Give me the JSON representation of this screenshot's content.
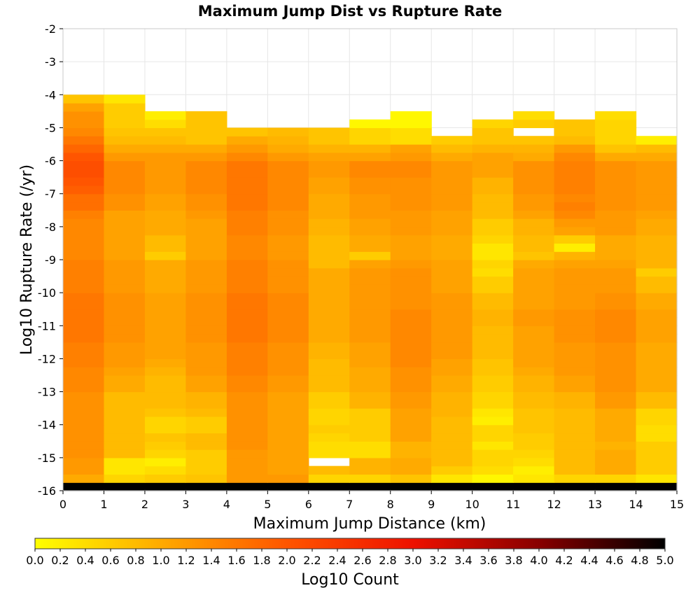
{
  "chart_data": {
    "type": "heatmap",
    "title": "Maximum Jump Dist vs Rupture Rate",
    "xlabel": "Maximum Jump Distance (km)",
    "ylabel": "Log10 Rupture Rate (/yr)",
    "xlim": [
      0,
      15
    ],
    "ylim": [
      -16,
      -2
    ],
    "x_ticks": [
      0,
      1,
      2,
      3,
      4,
      5,
      6,
      7,
      8,
      9,
      10,
      11,
      12,
      13,
      14,
      15
    ],
    "y_ticks": [
      -2,
      -3,
      -4,
      -5,
      -6,
      -7,
      -8,
      -9,
      -10,
      -11,
      -12,
      -13,
      -14,
      -15,
      -16
    ],
    "x_bin_width": 1,
    "y_bin_start": -16,
    "y_bin_height": 0.25,
    "grid": true,
    "colorbar": {
      "label": "Log10 Count",
      "min": 0,
      "max": 5,
      "ticks": [
        "0.0",
        "0.2",
        "0.4",
        "0.6",
        "0.8",
        "1.0",
        "1.2",
        "1.4",
        "1.6",
        "1.8",
        "2.0",
        "2.2",
        "2.4",
        "2.6",
        "2.8",
        "3.0",
        "3.2",
        "3.4",
        "3.6",
        "3.8",
        "4.0",
        "4.2",
        "4.4",
        "4.6",
        "4.8",
        "5.0"
      ],
      "colors": [
        "#ffff00",
        "#ffaa00",
        "#ff5500",
        "#ee1100",
        "#880000",
        "#000000"
      ]
    },
    "values": [
      [
        5.0,
        5.0,
        5.0,
        5.0,
        5.0,
        5.0,
        5.0,
        5.0,
        5.0,
        5.0,
        5.0,
        5.0,
        5.0,
        5.0,
        5.0
      ],
      [
        1.0,
        0.5,
        0.6,
        0.7,
        1.2,
        1.2,
        0.5,
        0.5,
        0.7,
        0.3,
        0.1,
        0.3,
        0.5,
        0.5,
        0.3
      ],
      [
        1.2,
        0.3,
        0.4,
        0.6,
        1.2,
        1.1,
        0.8,
        0.9,
        1.0,
        0.6,
        0.4,
        0.2,
        0.8,
        1.0,
        0.6
      ],
      [
        1.2,
        0.3,
        0.2,
        0.6,
        1.2,
        1.1,
        -1.0,
        0.9,
        1.0,
        0.8,
        0.5,
        0.4,
        0.8,
        1.0,
        0.6
      ],
      [
        1.3,
        0.8,
        0.5,
        0.6,
        1.2,
        1.1,
        0.4,
        0.4,
        0.9,
        0.8,
        0.5,
        0.5,
        0.8,
        1.0,
        0.6
      ],
      [
        1.3,
        0.8,
        0.6,
        0.8,
        1.3,
        1.1,
        0.4,
        0.4,
        0.9,
        0.8,
        0.3,
        0.6,
        0.8,
        0.9,
        0.6
      ],
      [
        1.3,
        0.8,
        0.7,
        0.8,
        1.3,
        1.1,
        0.5,
        0.6,
        1.1,
        0.8,
        0.5,
        0.6,
        0.8,
        1.0,
        0.4
      ],
      [
        1.3,
        0.8,
        0.5,
        0.6,
        1.3,
        1.1,
        0.6,
        0.6,
        1.1,
        0.8,
        0.5,
        0.7,
        0.8,
        1.0,
        0.4
      ],
      [
        1.3,
        0.8,
        0.5,
        0.6,
        1.3,
        1.1,
        0.5,
        0.6,
        1.1,
        0.8,
        0.2,
        0.7,
        0.8,
        1.0,
        0.5
      ],
      [
        1.3,
        0.8,
        0.7,
        0.8,
        1.3,
        1.1,
        0.5,
        0.6,
        1.1,
        0.9,
        0.3,
        0.7,
        0.8,
        1.0,
        0.5
      ],
      [
        1.3,
        0.8,
        0.8,
        0.9,
        1.3,
        1.1,
        0.6,
        0.9,
        1.2,
        0.9,
        0.5,
        0.8,
        0.9,
        1.2,
        0.8
      ],
      [
        1.3,
        0.8,
        0.8,
        0.9,
        1.3,
        1.1,
        0.6,
        0.9,
        1.2,
        0.9,
        0.5,
        0.8,
        0.9,
        1.2,
        0.8
      ],
      [
        1.4,
        1.0,
        0.8,
        1.1,
        1.4,
        1.2,
        0.8,
        1.0,
        1.3,
        1.0,
        0.6,
        0.9,
        1.1,
        1.3,
        1.0
      ],
      [
        1.4,
        1.0,
        0.8,
        1.1,
        1.4,
        1.2,
        0.8,
        1.0,
        1.3,
        1.0,
        0.6,
        0.9,
        1.1,
        1.3,
        1.0
      ],
      [
        1.4,
        1.1,
        0.9,
        1.2,
        1.5,
        1.3,
        0.8,
        1.0,
        1.3,
        1.1,
        0.7,
        1.0,
        1.2,
        1.3,
        1.0
      ],
      [
        1.5,
        1.2,
        1.0,
        1.2,
        1.5,
        1.3,
        0.8,
        1.1,
        1.4,
        1.1,
        0.7,
        1.1,
        1.2,
        1.3,
        1.0
      ],
      [
        1.5,
        1.2,
        1.1,
        1.2,
        1.5,
        1.3,
        0.9,
        1.1,
        1.4,
        1.2,
        0.8,
        1.1,
        1.2,
        1.3,
        1.0
      ],
      [
        1.5,
        1.2,
        1.1,
        1.2,
        1.5,
        1.3,
        0.9,
        1.1,
        1.4,
        1.2,
        0.8,
        1.1,
        1.2,
        1.3,
        1.0
      ],
      [
        1.6,
        1.3,
        1.1,
        1.3,
        1.6,
        1.4,
        1.0,
        1.2,
        1.4,
        1.2,
        0.8,
        1.1,
        1.3,
        1.4,
        1.1
      ],
      [
        1.6,
        1.3,
        1.1,
        1.3,
        1.6,
        1.4,
        1.0,
        1.2,
        1.4,
        1.2,
        0.8,
        1.1,
        1.3,
        1.4,
        1.1
      ],
      [
        1.6,
        1.3,
        1.1,
        1.3,
        1.6,
        1.4,
        1.0,
        1.2,
        1.4,
        1.2,
        0.9,
        1.2,
        1.3,
        1.4,
        1.1
      ],
      [
        1.6,
        1.3,
        1.1,
        1.3,
        1.6,
        1.4,
        1.0,
        1.2,
        1.4,
        1.2,
        0.9,
        1.2,
        1.3,
        1.4,
        1.1
      ],
      [
        1.6,
        1.3,
        1.1,
        1.3,
        1.6,
        1.4,
        1.0,
        1.2,
        1.3,
        1.2,
        0.8,
        1.1,
        1.2,
        1.3,
        1.0
      ],
      [
        1.6,
        1.3,
        1.1,
        1.3,
        1.6,
        1.4,
        1.0,
        1.2,
        1.3,
        1.2,
        0.8,
        1.1,
        1.2,
        1.3,
        1.0
      ],
      [
        1.5,
        1.2,
        1.0,
        1.2,
        1.5,
        1.3,
        1.0,
        1.2,
        1.3,
        1.1,
        0.6,
        1.1,
        1.2,
        1.2,
        0.8
      ],
      [
        1.5,
        1.2,
        1.0,
        1.2,
        1.5,
        1.3,
        1.0,
        1.2,
        1.3,
        1.1,
        0.6,
        1.1,
        1.2,
        1.2,
        0.8
      ],
      [
        1.5,
        1.2,
        1.0,
        1.2,
        1.5,
        1.3,
        1.0,
        1.2,
        1.3,
        1.1,
        0.4,
        1.1,
        1.2,
        1.2,
        0.6
      ],
      [
        1.5,
        1.2,
        1.0,
        1.2,
        1.5,
        1.3,
        0.8,
        1.1,
        1.2,
        1.1,
        0.5,
        1.0,
        1.1,
        1.1,
        0.9
      ],
      [
        1.4,
        1.1,
        0.6,
        1.1,
        1.4,
        1.2,
        0.8,
        0.6,
        1.1,
        1.0,
        0.3,
        0.7,
        0.9,
        1.0,
        0.9
      ],
      [
        1.4,
        1.1,
        0.8,
        1.1,
        1.4,
        1.2,
        0.8,
        1.0,
        1.1,
        1.0,
        0.3,
        0.8,
        0.2,
        1.0,
        0.9
      ],
      [
        1.4,
        1.1,
        0.8,
        1.1,
        1.4,
        1.2,
        0.8,
        1.0,
        1.1,
        1.0,
        0.5,
        0.8,
        0.6,
        1.0,
        0.9
      ],
      [
        1.4,
        1.1,
        1.0,
        1.1,
        1.5,
        1.3,
        0.9,
        1.1,
        1.2,
        1.1,
        0.6,
        0.9,
        1.1,
        1.2,
        1.0
      ],
      [
        1.4,
        1.1,
        1.0,
        1.1,
        1.5,
        1.3,
        0.9,
        1.1,
        1.2,
        1.1,
        0.6,
        0.9,
        1.2,
        1.2,
        1.0
      ],
      [
        1.5,
        1.1,
        1.0,
        1.2,
        1.5,
        1.3,
        1.0,
        1.2,
        1.2,
        1.1,
        0.8,
        1.1,
        1.4,
        1.2,
        1.1
      ],
      [
        1.7,
        1.3,
        1.1,
        1.3,
        1.6,
        1.4,
        1.0,
        1.2,
        1.3,
        1.2,
        0.8,
        1.2,
        1.5,
        1.3,
        1.2
      ],
      [
        1.7,
        1.3,
        1.1,
        1.3,
        1.6,
        1.4,
        1.0,
        1.2,
        1.3,
        1.2,
        0.8,
        1.2,
        1.4,
        1.3,
        1.2
      ],
      [
        1.9,
        1.4,
        1.2,
        1.4,
        1.6,
        1.4,
        1.1,
        1.3,
        1.3,
        1.2,
        0.9,
        1.3,
        1.5,
        1.3,
        1.2
      ],
      [
        2.0,
        1.4,
        1.2,
        1.4,
        1.6,
        1.4,
        1.1,
        1.3,
        1.3,
        1.2,
        0.9,
        1.3,
        1.5,
        1.3,
        1.2
      ],
      [
        2.1,
        1.4,
        1.2,
        1.4,
        1.6,
        1.4,
        1.2,
        1.4,
        1.4,
        1.2,
        1.1,
        1.3,
        1.5,
        1.3,
        1.2
      ],
      [
        2.1,
        1.4,
        1.2,
        1.4,
        1.6,
        1.4,
        1.2,
        1.4,
        1.4,
        1.2,
        1.1,
        1.3,
        1.5,
        1.3,
        1.2
      ],
      [
        2.0,
        1.2,
        1.2,
        1.2,
        1.4,
        1.2,
        1.1,
        1.1,
        1.2,
        1.0,
        1.1,
        1.0,
        1.4,
        1.0,
        1.0
      ],
      [
        1.8,
        1.0,
        1.0,
        1.0,
        1.2,
        1.0,
        0.9,
        0.9,
        1.1,
        0.8,
        0.9,
        0.9,
        1.2,
        0.7,
        0.8
      ],
      [
        1.6,
        0.8,
        0.8,
        0.7,
        1.0,
        0.9,
        0.7,
        0.5,
        0.4,
        0.6,
        0.7,
        0.7,
        0.8,
        0.5,
        0.2
      ],
      [
        1.4,
        0.7,
        0.7,
        0.7,
        0.7,
        0.8,
        0.7,
        0.5,
        0.4,
        -1,
        0.7,
        -1,
        0.7,
        0.5,
        -1
      ],
      [
        1.3,
        0.6,
        0.4,
        0.7,
        -1,
        -1,
        -1,
        0.1,
        0.1,
        -1,
        0.5,
        0.6,
        0.7,
        0.5,
        -1
      ],
      [
        1.3,
        0.6,
        0.2,
        0.7,
        -1,
        -1,
        -1,
        -1,
        0.1,
        -1,
        -1,
        0.4,
        -1,
        0.4,
        -1
      ],
      [
        1.1,
        0.6,
        -1,
        -1,
        -1,
        -1,
        -1,
        -1,
        -1,
        -1,
        -1,
        -1,
        -1,
        -1,
        -1
      ],
      [
        0.7,
        0.3,
        -1,
        -1,
        -1,
        -1,
        -1,
        -1,
        -1,
        -1,
        -1,
        -1,
        -1,
        -1,
        -1
      ],
      [
        -1,
        -1,
        -1,
        -1,
        -1,
        -1,
        -1,
        -1,
        -1,
        -1,
        -1,
        -1,
        -1,
        -1,
        -1
      ],
      [
        -1,
        -1,
        -1,
        -1,
        -1,
        -1,
        -1,
        -1,
        -1,
        -1,
        -1,
        -1,
        -1,
        -1,
        -1
      ]
    ]
  }
}
